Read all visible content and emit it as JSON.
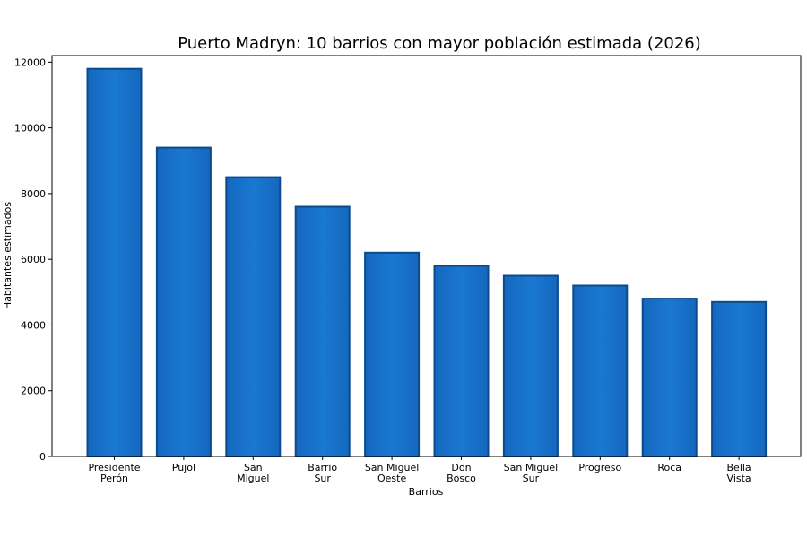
{
  "chart_data": {
    "type": "bar",
    "title": "Puerto Madryn: 10 barrios con mayor población estimada (2026)",
    "xlabel": "Barrios",
    "ylabel": "Habitantes estimados",
    "categories": [
      [
        "Presidente",
        "Perón"
      ],
      [
        "Pujol"
      ],
      [
        "San",
        "Miguel"
      ],
      [
        "Barrio",
        "Sur"
      ],
      [
        "San Miguel",
        "Oeste"
      ],
      [
        "Don",
        "Bosco"
      ],
      [
        "San Miguel",
        "Sur"
      ],
      [
        "Progreso"
      ],
      [
        "Roca"
      ],
      [
        "Bella",
        "Vista"
      ]
    ],
    "values": [
      11800,
      9400,
      8500,
      7600,
      6200,
      5800,
      5500,
      5200,
      4800,
      4700
    ],
    "ylim": [
      0,
      12200
    ],
    "yticks": [
      0,
      2000,
      4000,
      6000,
      8000,
      10000,
      12000
    ],
    "grid": false,
    "legend": "none",
    "colors": {
      "bar_fill": "#1874CD",
      "bar_edge": "#0B4A8B",
      "axis": "#000000"
    }
  }
}
